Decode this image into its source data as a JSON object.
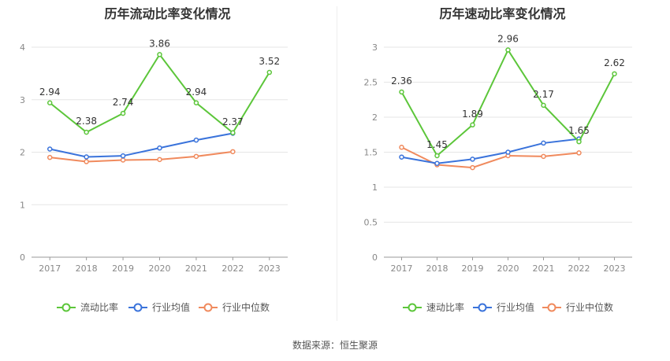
{
  "source": {
    "label": "数据来源：",
    "value": "恒生聚源"
  },
  "colors": {
    "main": "#5cc63a",
    "industry_avg": "#3a73db",
    "industry_median": "#f08a5d",
    "grid": "#e6e6e6",
    "axis": "#999999"
  },
  "chart_data": [
    {
      "type": "line",
      "title": "历年流动比率变化情况",
      "x": [
        "2017",
        "2018",
        "2019",
        "2020",
        "2021",
        "2022",
        "2023"
      ],
      "ylim": [
        0,
        4
      ],
      "yticks": [
        0,
        1,
        2,
        3,
        4
      ],
      "ytick_labels": [
        "0",
        "1",
        "2",
        "3",
        "4"
      ],
      "grid": true,
      "legend_position": "bottom",
      "series": [
        {
          "name": "流动比率",
          "values": [
            2.94,
            2.38,
            2.74,
            3.86,
            2.94,
            2.37,
            3.52
          ],
          "data_labels": [
            "2.94",
            "2.38",
            "2.74",
            "3.86",
            "2.94",
            "2.37",
            "3.52"
          ]
        },
        {
          "name": "行业均值",
          "values": [
            2.06,
            1.91,
            1.93,
            2.08,
            2.23,
            2.36,
            null
          ]
        },
        {
          "name": "行业中位数",
          "values": [
            1.9,
            1.82,
            1.85,
            1.86,
            1.92,
            2.01,
            null
          ]
        }
      ]
    },
    {
      "type": "line",
      "title": "历年速动比率变化情况",
      "x": [
        "2017",
        "2018",
        "2019",
        "2020",
        "2021",
        "2022",
        "2023"
      ],
      "ylim": [
        0,
        3
      ],
      "yticks": [
        0,
        0.5,
        1,
        1.5,
        2,
        2.5,
        3
      ],
      "ytick_labels": [
        "0",
        "0.5",
        "1",
        "1.5",
        "2",
        "2.5",
        "3"
      ],
      "grid": true,
      "legend_position": "bottom",
      "series": [
        {
          "name": "速动比率",
          "values": [
            2.36,
            1.45,
            1.89,
            2.96,
            2.17,
            1.65,
            2.62
          ],
          "data_labels": [
            "2.36",
            "1.45",
            "1.89",
            "2.96",
            "2.17",
            "1.65",
            "2.62"
          ]
        },
        {
          "name": "行业均值",
          "values": [
            1.43,
            1.34,
            1.4,
            1.5,
            1.63,
            1.69,
            null
          ]
        },
        {
          "name": "行业中位数",
          "values": [
            1.57,
            1.32,
            1.28,
            1.45,
            1.44,
            1.49,
            null
          ]
        }
      ]
    }
  ]
}
